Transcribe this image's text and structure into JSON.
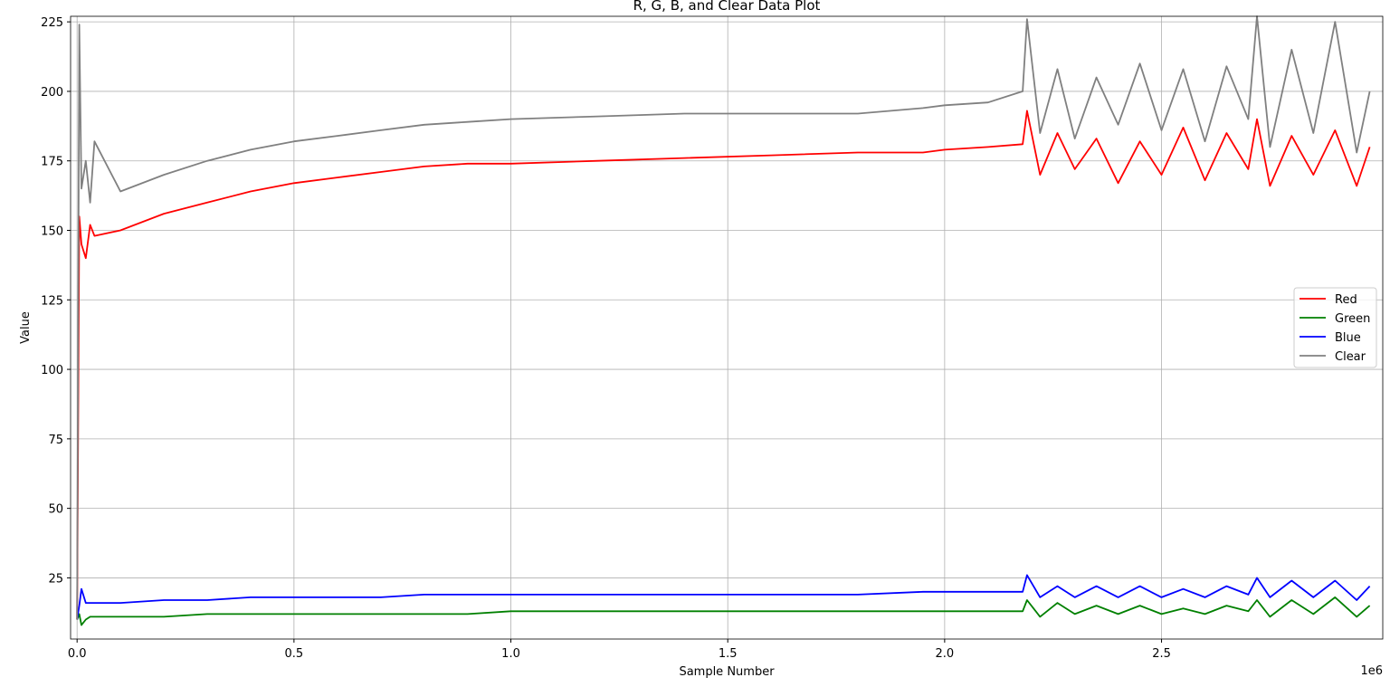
{
  "chart_data": {
    "type": "line",
    "title": "R, G, B, and Clear Data Plot",
    "x_label": "Sample Number",
    "y_label": "Value",
    "x_offset_label": "1e6",
    "x": [
      0,
      5000,
      10000,
      20000,
      30000,
      40000,
      100000,
      200000,
      300000,
      400000,
      500000,
      600000,
      700000,
      800000,
      900000,
      1000000,
      1200000,
      1400000,
      1600000,
      1800000,
      1950000,
      2000000,
      2100000,
      2180000,
      2190000,
      2220000,
      2260000,
      2300000,
      2350000,
      2400000,
      2450000,
      2500000,
      2550000,
      2600000,
      2650000,
      2700000,
      2720000,
      2750000,
      2800000,
      2850000,
      2900000,
      2950000,
      2980000
    ],
    "series": [
      {
        "name": "Red",
        "color": "#ff0000",
        "values": [
          10,
          155,
          145,
          140,
          152,
          148,
          150,
          156,
          160,
          164,
          167,
          169,
          171,
          173,
          174,
          174,
          175,
          176,
          177,
          178,
          178,
          179,
          180,
          181,
          193,
          170,
          185,
          172,
          183,
          167,
          182,
          170,
          187,
          168,
          185,
          172,
          190,
          166,
          184,
          170,
          186,
          166,
          180
        ]
      },
      {
        "name": "Green",
        "color": "#008000",
        "values": [
          10,
          12,
          8,
          10,
          11,
          11,
          11,
          11,
          12,
          12,
          12,
          12,
          12,
          12,
          12,
          13,
          13,
          13,
          13,
          13,
          13,
          13,
          13,
          13,
          17,
          11,
          16,
          12,
          15,
          12,
          15,
          12,
          14,
          12,
          15,
          13,
          17,
          11,
          17,
          12,
          18,
          11,
          15
        ]
      },
      {
        "name": "Blue",
        "color": "#0000ff",
        "values": [
          10,
          15,
          21,
          16,
          16,
          16,
          16,
          17,
          17,
          18,
          18,
          18,
          18,
          19,
          19,
          19,
          19,
          19,
          19,
          19,
          20,
          20,
          20,
          20,
          26,
          18,
          22,
          18,
          22,
          18,
          22,
          18,
          21,
          18,
          22,
          19,
          25,
          18,
          24,
          18,
          24,
          17,
          22
        ]
      },
      {
        "name": "Clear",
        "color": "#808080",
        "values": [
          10,
          224,
          165,
          175,
          160,
          182,
          164,
          170,
          175,
          179,
          182,
          184,
          186,
          188,
          189,
          190,
          191,
          192,
          192,
          192,
          194,
          195,
          196,
          200,
          226,
          185,
          208,
          183,
          205,
          188,
          210,
          186,
          208,
          182,
          209,
          190,
          227,
          180,
          215,
          185,
          225,
          178,
          200
        ]
      }
    ],
    "xlim": [
      -15000,
      3010000
    ],
    "xticks": [
      {
        "value": 0,
        "label": "0.0"
      },
      {
        "value": 500000,
        "label": "0.5"
      },
      {
        "value": 1000000,
        "label": "1.0"
      },
      {
        "value": 1500000,
        "label": "1.5"
      },
      {
        "value": 2000000,
        "label": "2.0"
      },
      {
        "value": 2500000,
        "label": "2.5"
      }
    ],
    "ylim": [
      3,
      227
    ],
    "yticks": [
      25,
      50,
      75,
      100,
      125,
      150,
      175,
      200,
      225
    ],
    "grid": true,
    "legend": "center right"
  }
}
